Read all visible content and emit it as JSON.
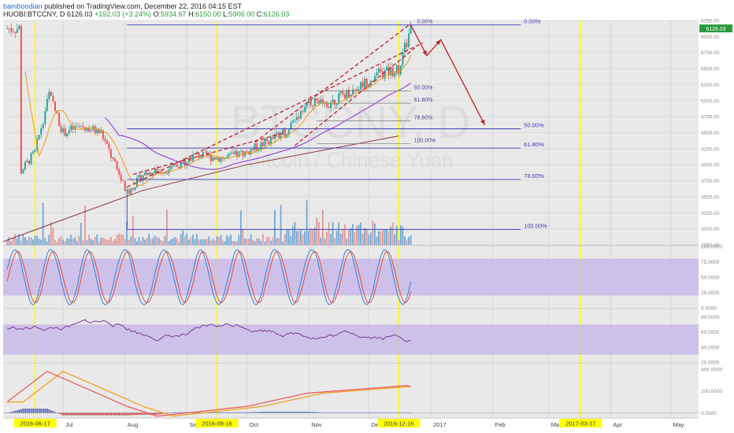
{
  "header": {
    "publisher_user": "bamboodian",
    "publisher_rest": "published on TradingView.com, December 22, 2016 04:15 EST",
    "symbol": "HUOBI:BTCCNY, D",
    "last": "6126.03",
    "change": "+192.03 (+3.24%)",
    "o_label": "O:",
    "o": "5934.67",
    "h_label": "H:",
    "h": "6150.00",
    "l_label": "L:",
    "l": "5906.00",
    "c_label": "C:",
    "c": "6126.03"
  },
  "watermark": {
    "symbol": "BTCCNY, D",
    "name": "Bitcoin / Chinese Yuan"
  },
  "price_tag": "6126.03",
  "colors": {
    "up": "#26a69a",
    "down": "#ef5350",
    "volume": "#5b9bd5",
    "fib": "#3b3bb5",
    "arrow": "#c0202a",
    "ma_purple": "#8a2be2",
    "ma_brown": "#8b3a3a",
    "ma_orange": "#f39c12",
    "stoch_k": "#2e86de",
    "stoch_d": "#e74c3c",
    "rsi": "#7d3c98",
    "highlight": "#ffff00",
    "band": "#c7b6e8"
  },
  "chart_data": [
    {
      "type": "line",
      "name": "price",
      "x": [
        "2016-06-10",
        "2016-06-17",
        "2016-06-24",
        "2016-07-01",
        "2016-07-10",
        "2016-07-20",
        "2016-08-02",
        "2016-08-10",
        "2016-08-25",
        "2016-09-05",
        "2016-09-20",
        "2016-10-01",
        "2016-10-20",
        "2016-11-01",
        "2016-11-10",
        "2016-11-25",
        "2016-12-05",
        "2016-12-16",
        "2016-12-22"
      ],
      "values": [
        3900,
        4200,
        5100,
        4500,
        4600,
        4500,
        3550,
        3850,
        3950,
        4150,
        4100,
        4200,
        4500,
        5000,
        4950,
        5200,
        5400,
        5500,
        6126
      ],
      "price_axis": {
        "ticks": [
          "6250.00",
          "6000.00",
          "5750.00",
          "5500.00",
          "5250.00",
          "5000.00",
          "4750.00",
          "4500.00",
          "4250.00",
          "4000.00",
          "3750.00",
          "3500.00",
          "3250.00",
          "3000.00",
          "2750.00"
        ],
        "ylim": [
          2750,
          6250
        ]
      },
      "x_axis": {
        "ticks": [
          "Jul",
          "Aug",
          "Sep",
          "Oct",
          "Nov",
          "Dec",
          "2017",
          "Feb",
          "Mar",
          "Apr",
          "May"
        ],
        "highlighted_dates": [
          "2016-06-17",
          "2016-09-16",
          "2016-12-16",
          "2017-03-17"
        ]
      },
      "fib_levels": {
        "set1": [
          "0.00%",
          "50.00%",
          "61.80%",
          "78.60%",
          "100.00%"
        ],
        "set2": [
          "0.00%",
          "50.00%",
          "61.80%",
          "78.60%",
          "100.00%"
        ]
      }
    },
    {
      "type": "line",
      "name": "stochastic",
      "ticks": [
        "100.0000",
        "75.0000",
        "50.0000",
        "25.0000",
        "0.0000"
      ],
      "ylim": [
        0,
        100
      ],
      "bands": [
        20,
        80
      ]
    },
    {
      "type": "line",
      "name": "rsi",
      "ticks": [
        "80.0000",
        "60.0000",
        "40.0000",
        "20.0000"
      ],
      "ylim": [
        20,
        90
      ]
    },
    {
      "type": "line",
      "name": "macd",
      "ticks": [
        "400.0000",
        "200.0000",
        "0.0000"
      ],
      "ylim": [
        -40,
        450
      ]
    }
  ]
}
